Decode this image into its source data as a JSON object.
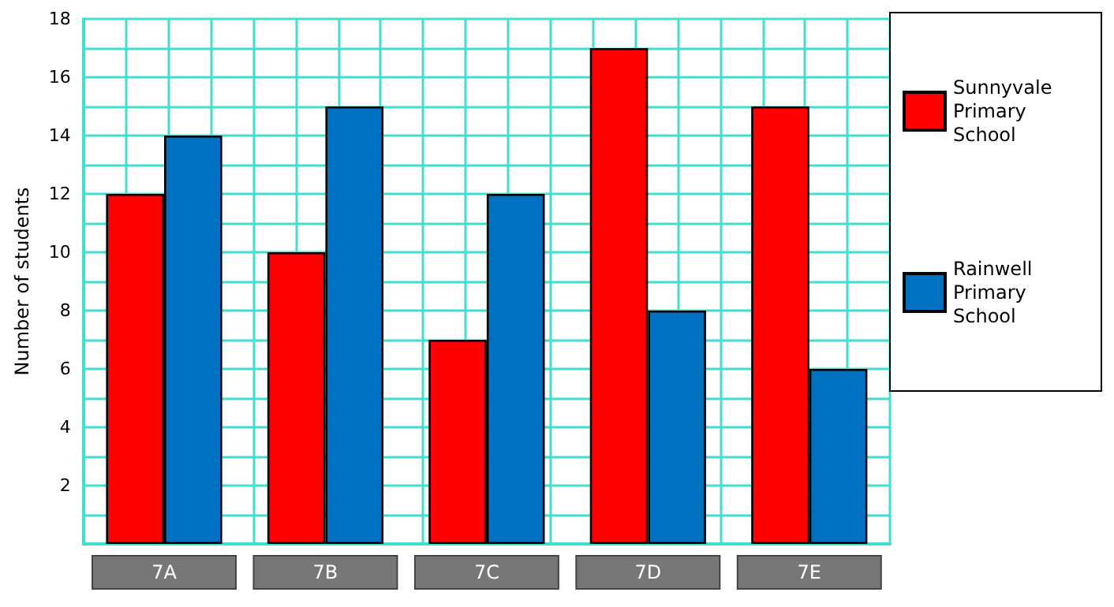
{
  "chart_data": {
    "type": "bar",
    "ylabel": "Number of students",
    "categories": [
      "7A",
      "7B",
      "7C",
      "7D",
      "7E"
    ],
    "series": [
      {
        "name": "Sunnyvale Primary School",
        "color": "#ff0000",
        "values": [
          12,
          10,
          7,
          17,
          15
        ]
      },
      {
        "name": "Rainwell Primary School",
        "color": "#0070c0",
        "values": [
          14,
          15,
          12,
          8,
          6
        ]
      }
    ],
    "ylim": [
      0,
      18
    ],
    "yticks": [
      {
        "value": 0,
        "label": null
      },
      {
        "value": 1,
        "label": null
      },
      2,
      {
        "value": 3,
        "label": null
      },
      4,
      {
        "value": 5,
        "label": null
      },
      6,
      {
        "value": 7,
        "label": null
      },
      8,
      {
        "value": 9,
        "label": null
      },
      10,
      {
        "value": 11,
        "label": null
      },
      12,
      {
        "value": 13,
        "label": null
      },
      14,
      {
        "value": 15,
        "label": null
      },
      16,
      {
        "value": 17,
        "label": null
      },
      18
    ],
    "grid": true,
    "legend": "right"
  }
}
